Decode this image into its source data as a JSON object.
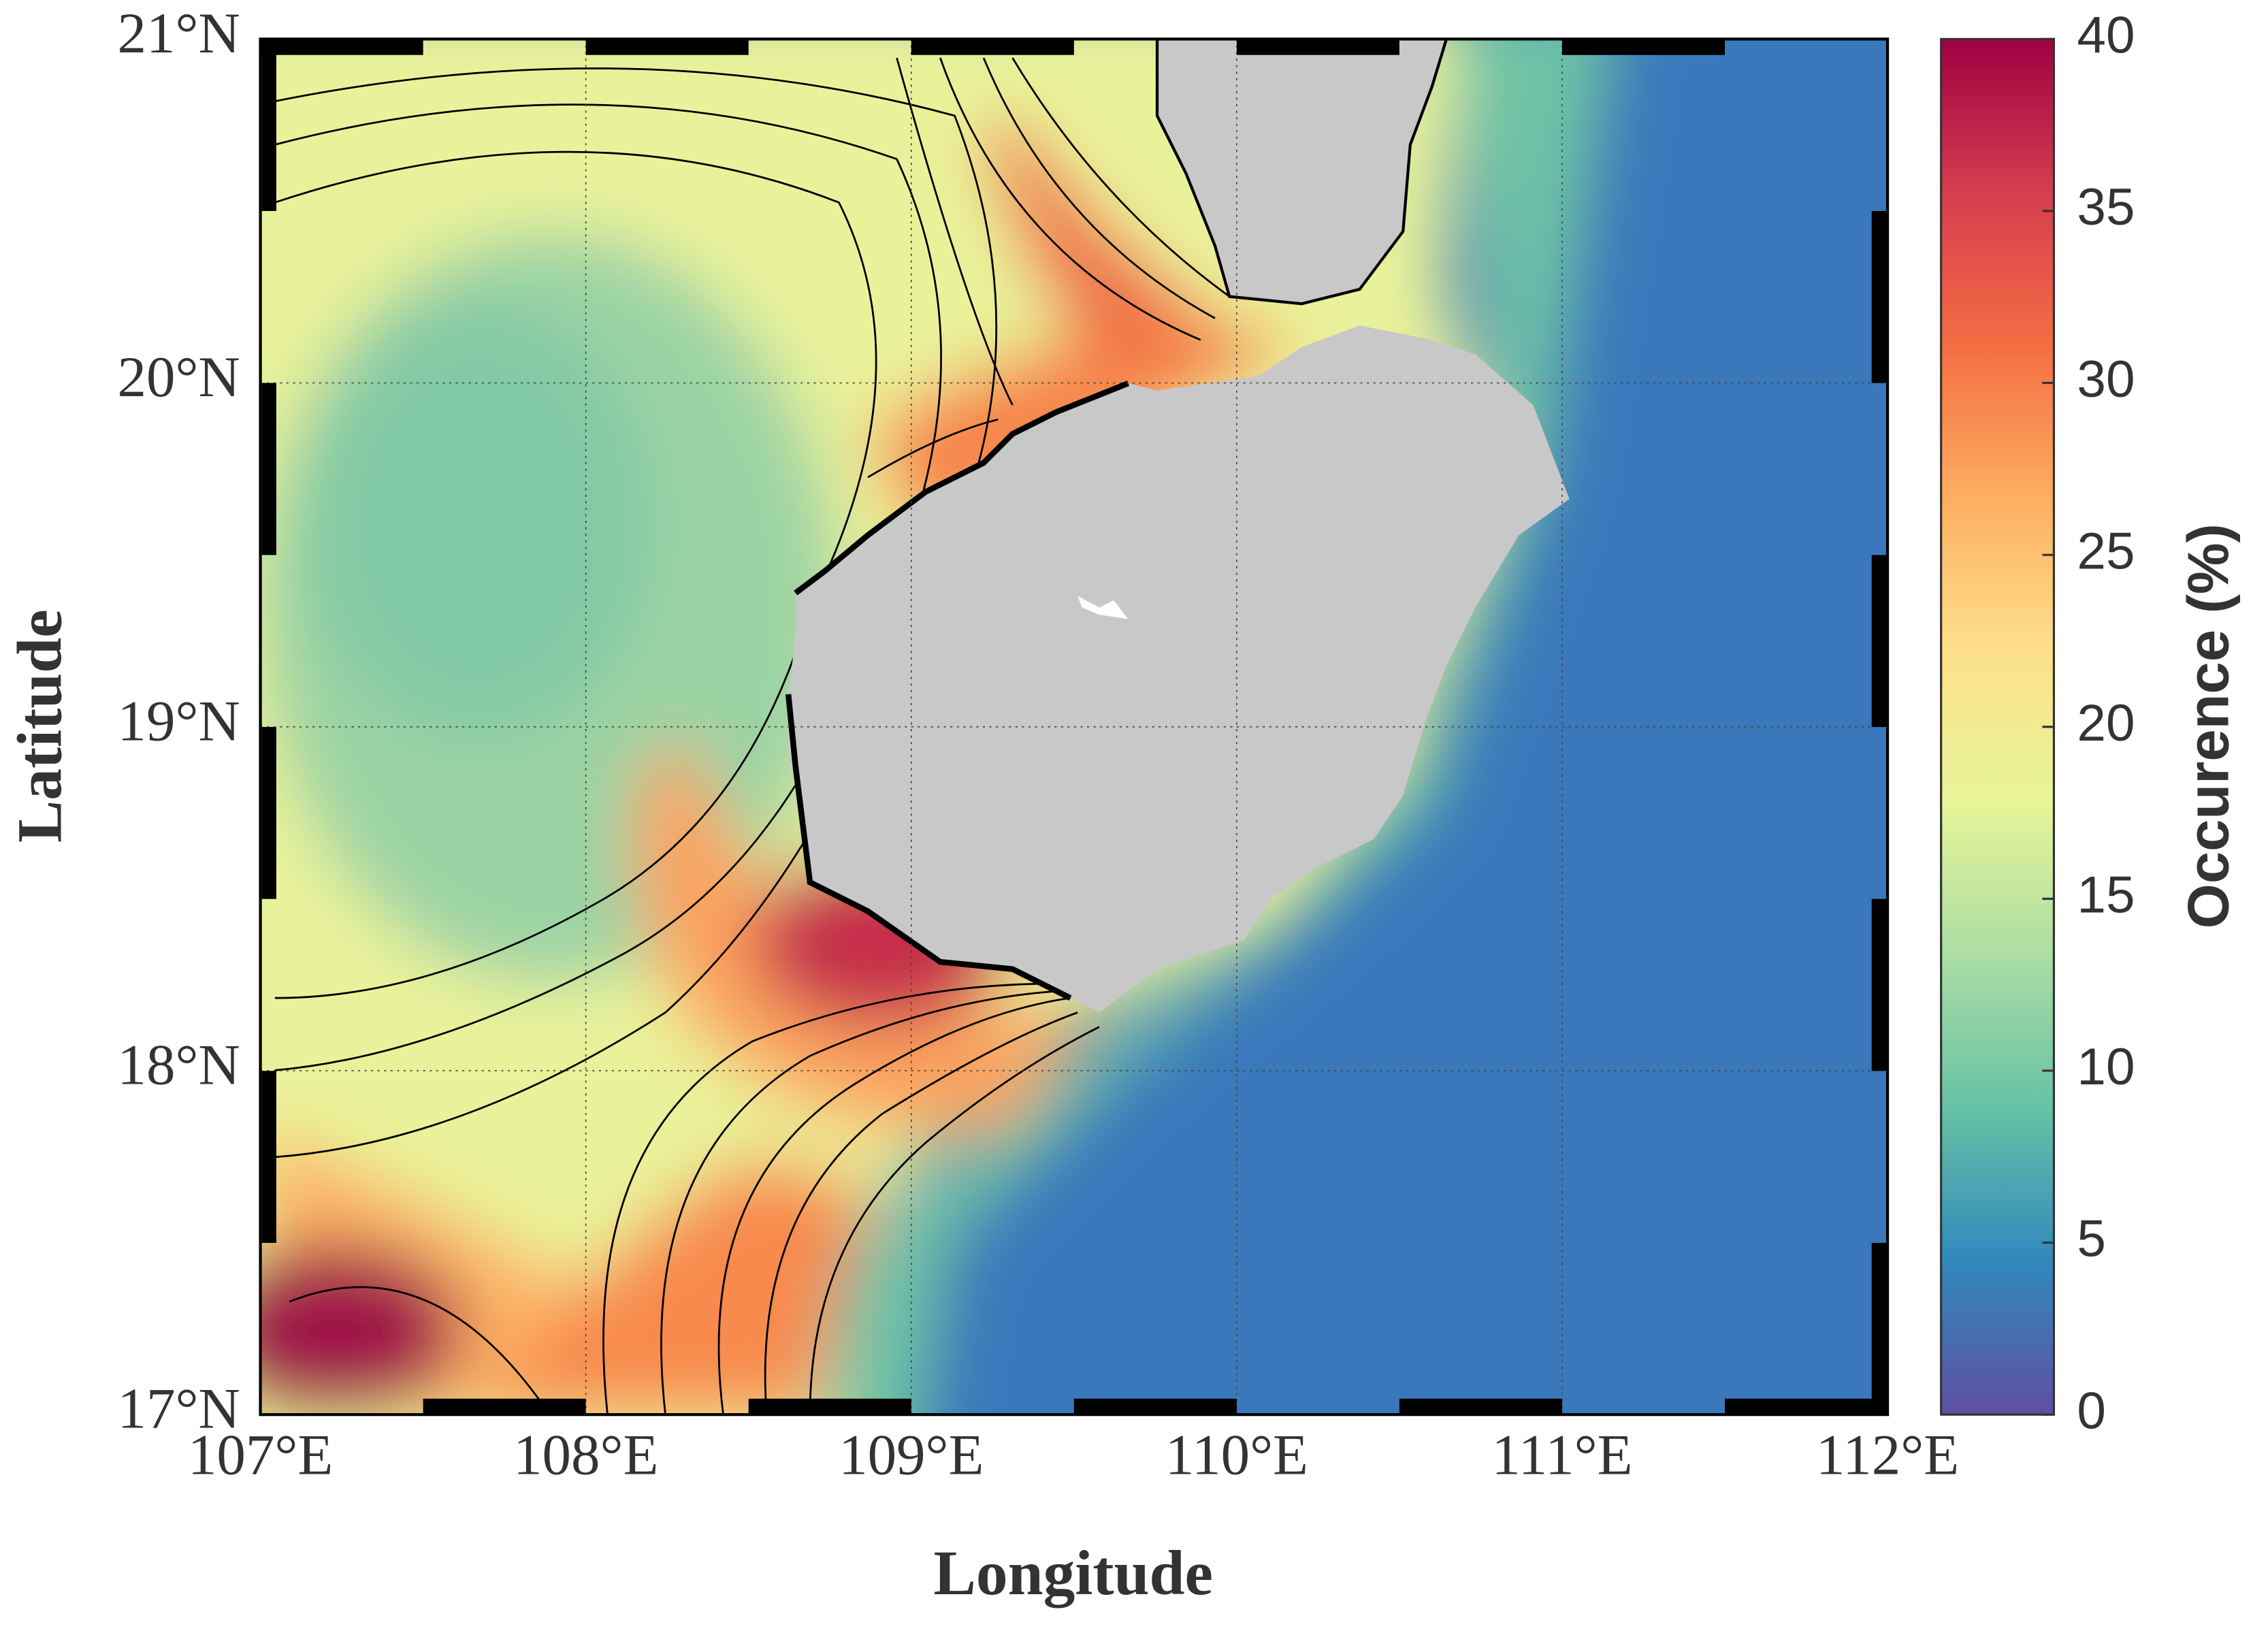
{
  "chart_data": {
    "type": "heatmap",
    "xlabel": "Longitude",
    "ylabel": "Latitude",
    "xlim": [
      107,
      112
    ],
    "ylim": [
      17,
      21
    ],
    "xticks": [
      {
        "value": 107,
        "label": "107°E"
      },
      {
        "value": 108,
        "label": "108°E"
      },
      {
        "value": 109,
        "label": "109°E"
      },
      {
        "value": 110,
        "label": "110°E"
      },
      {
        "value": 111,
        "label": "111°E"
      },
      {
        "value": 112,
        "label": "112°E"
      }
    ],
    "yticks": [
      {
        "value": 17,
        "label": "17°N"
      },
      {
        "value": 18,
        "label": "18°N"
      },
      {
        "value": 19,
        "label": "19°N"
      },
      {
        "value": 20,
        "label": "20°N"
      },
      {
        "value": 21,
        "label": "21°N"
      }
    ],
    "grid": true,
    "colorbar": {
      "label": "Occurence (%)",
      "lim": [
        0,
        40
      ],
      "ticks": [
        0,
        5,
        10,
        15,
        20,
        25,
        30,
        35,
        40
      ],
      "colormap": [
        "#5e4fa2",
        "#3288bd",
        "#66c2a5",
        "#abdda4",
        "#e6f598",
        "#fee08b",
        "#fdae61",
        "#f46d43",
        "#d53e4f",
        "#9e0142"
      ]
    }
  }
}
